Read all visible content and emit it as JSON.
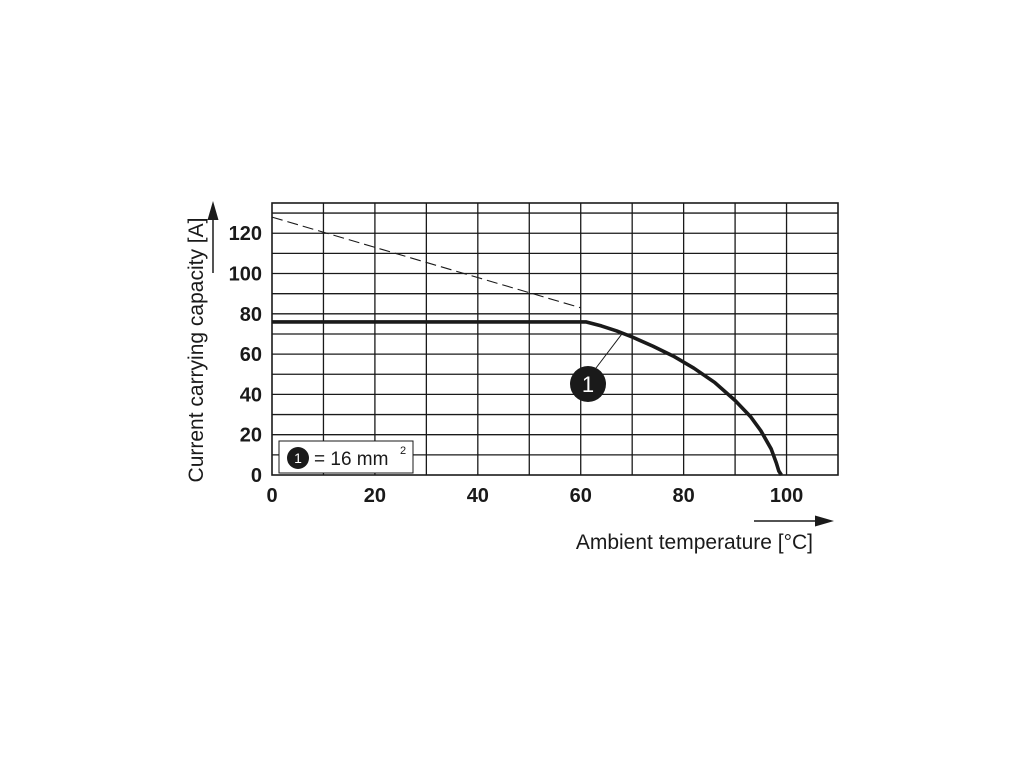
{
  "chart_data": {
    "type": "line",
    "xlabel": "Ambient temperature [°C]",
    "ylabel": "Current carrying capacity [A]",
    "xlim": [
      0,
      110
    ],
    "ylim": [
      0,
      135
    ],
    "x_ticks": [
      "0",
      "20",
      "40",
      "60",
      "80",
      "100"
    ],
    "y_ticks": [
      "0",
      "20",
      "40",
      "60",
      "80",
      "100",
      "120"
    ],
    "grid": true,
    "series": [
      {
        "marker": "1",
        "style": "solid-bold",
        "x": [
          0,
          61,
          64,
          67,
          70,
          74,
          78,
          82,
          86,
          90,
          93,
          95,
          97,
          98,
          98.5,
          99
        ],
        "y": [
          76,
          76,
          74,
          71.5,
          68.5,
          64,
          59,
          53,
          46,
          37,
          29,
          22,
          13,
          6,
          2,
          0
        ]
      },
      {
        "style": "dashed",
        "x": [
          0,
          60
        ],
        "y": [
          128,
          83
        ]
      }
    ],
    "annotations": [
      {
        "label": "1",
        "x": 68,
        "y": 70
      }
    ],
    "legend": {
      "marker": "1",
      "text": "= 16 mm",
      "superscript": "2",
      "position": "bottom-left"
    }
  }
}
